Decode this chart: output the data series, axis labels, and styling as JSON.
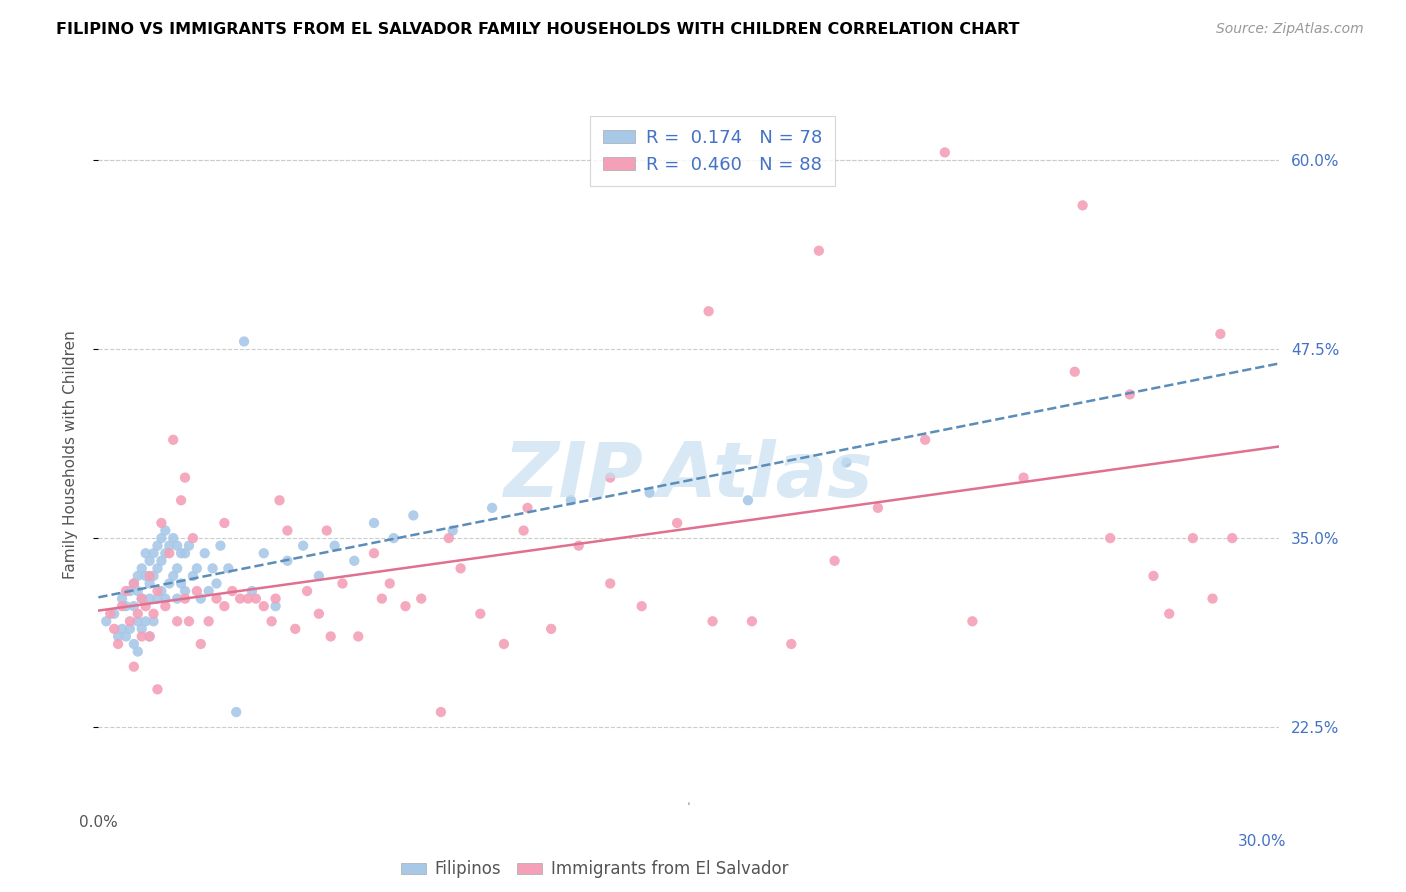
{
  "title": "FILIPINO VS IMMIGRANTS FROM EL SALVADOR FAMILY HOUSEHOLDS WITH CHILDREN CORRELATION CHART",
  "source": "Source: ZipAtlas.com",
  "ylabel": "Family Households with Children",
  "ytick_labels": [
    "22.5%",
    "35.0%",
    "47.5%",
    "60.0%"
  ],
  "ytick_values": [
    0.225,
    0.35,
    0.475,
    0.6
  ],
  "xlim": [
    0.0,
    0.3
  ],
  "ylim": [
    0.175,
    0.635
  ],
  "color_blue": "#a8c8e8",
  "color_pink": "#f4a0b8",
  "trendline_blue_color": "#5b8db8",
  "trendline_pink_color": "#e07090",
  "watermark_color": "#c8dff0",
  "filipinos_x": [
    0.002,
    0.004,
    0.005,
    0.006,
    0.006,
    0.007,
    0.007,
    0.008,
    0.008,
    0.009,
    0.009,
    0.009,
    0.01,
    0.01,
    0.01,
    0.01,
    0.011,
    0.011,
    0.011,
    0.012,
    0.012,
    0.012,
    0.013,
    0.013,
    0.013,
    0.013,
    0.014,
    0.014,
    0.014,
    0.015,
    0.015,
    0.015,
    0.016,
    0.016,
    0.016,
    0.017,
    0.017,
    0.017,
    0.018,
    0.018,
    0.019,
    0.019,
    0.02,
    0.02,
    0.02,
    0.021,
    0.021,
    0.022,
    0.022,
    0.023,
    0.024,
    0.025,
    0.026,
    0.027,
    0.028,
    0.029,
    0.03,
    0.031,
    0.033,
    0.035,
    0.037,
    0.039,
    0.042,
    0.045,
    0.048,
    0.052,
    0.056,
    0.06,
    0.065,
    0.07,
    0.075,
    0.08,
    0.09,
    0.1,
    0.12,
    0.14,
    0.165,
    0.19
  ],
  "filipinos_y": [
    0.295,
    0.3,
    0.285,
    0.31,
    0.29,
    0.305,
    0.285,
    0.315,
    0.29,
    0.32,
    0.305,
    0.28,
    0.325,
    0.315,
    0.295,
    0.275,
    0.33,
    0.31,
    0.29,
    0.34,
    0.325,
    0.295,
    0.335,
    0.32,
    0.31,
    0.285,
    0.34,
    0.325,
    0.295,
    0.345,
    0.33,
    0.31,
    0.35,
    0.335,
    0.315,
    0.355,
    0.34,
    0.31,
    0.345,
    0.32,
    0.35,
    0.325,
    0.345,
    0.33,
    0.31,
    0.34,
    0.32,
    0.34,
    0.315,
    0.345,
    0.325,
    0.33,
    0.31,
    0.34,
    0.315,
    0.33,
    0.32,
    0.345,
    0.33,
    0.235,
    0.48,
    0.315,
    0.34,
    0.305,
    0.335,
    0.345,
    0.325,
    0.345,
    0.335,
    0.36,
    0.35,
    0.365,
    0.355,
    0.37,
    0.375,
    0.38,
    0.375,
    0.4
  ],
  "salvador_x": [
    0.003,
    0.004,
    0.005,
    0.006,
    0.007,
    0.008,
    0.009,
    0.009,
    0.01,
    0.011,
    0.011,
    0.012,
    0.013,
    0.013,
    0.014,
    0.015,
    0.015,
    0.016,
    0.017,
    0.018,
    0.019,
    0.02,
    0.021,
    0.022,
    0.023,
    0.024,
    0.025,
    0.026,
    0.028,
    0.03,
    0.032,
    0.034,
    0.036,
    0.038,
    0.04,
    0.042,
    0.044,
    0.046,
    0.048,
    0.05,
    0.053,
    0.056,
    0.059,
    0.062,
    0.066,
    0.07,
    0.074,
    0.078,
    0.082,
    0.087,
    0.092,
    0.097,
    0.103,
    0.109,
    0.115,
    0.122,
    0.13,
    0.138,
    0.147,
    0.156,
    0.166,
    0.176,
    0.187,
    0.198,
    0.21,
    0.222,
    0.235,
    0.248,
    0.257,
    0.262,
    0.268,
    0.272,
    0.278,
    0.283,
    0.288,
    0.022,
    0.032,
    0.045,
    0.058,
    0.072,
    0.089,
    0.108,
    0.13,
    0.155,
    0.183,
    0.215,
    0.25,
    0.285
  ],
  "salvador_y": [
    0.3,
    0.29,
    0.28,
    0.305,
    0.315,
    0.295,
    0.32,
    0.265,
    0.3,
    0.285,
    0.31,
    0.305,
    0.325,
    0.285,
    0.3,
    0.315,
    0.25,
    0.36,
    0.305,
    0.34,
    0.415,
    0.295,
    0.375,
    0.31,
    0.295,
    0.35,
    0.315,
    0.28,
    0.295,
    0.31,
    0.305,
    0.315,
    0.31,
    0.31,
    0.31,
    0.305,
    0.295,
    0.375,
    0.355,
    0.29,
    0.315,
    0.3,
    0.285,
    0.32,
    0.285,
    0.34,
    0.32,
    0.305,
    0.31,
    0.235,
    0.33,
    0.3,
    0.28,
    0.37,
    0.29,
    0.345,
    0.32,
    0.305,
    0.36,
    0.295,
    0.295,
    0.28,
    0.335,
    0.37,
    0.415,
    0.295,
    0.39,
    0.46,
    0.35,
    0.445,
    0.325,
    0.3,
    0.35,
    0.31,
    0.35,
    0.39,
    0.36,
    0.31,
    0.355,
    0.31,
    0.35,
    0.355,
    0.39,
    0.5,
    0.54,
    0.605,
    0.57,
    0.485
  ]
}
